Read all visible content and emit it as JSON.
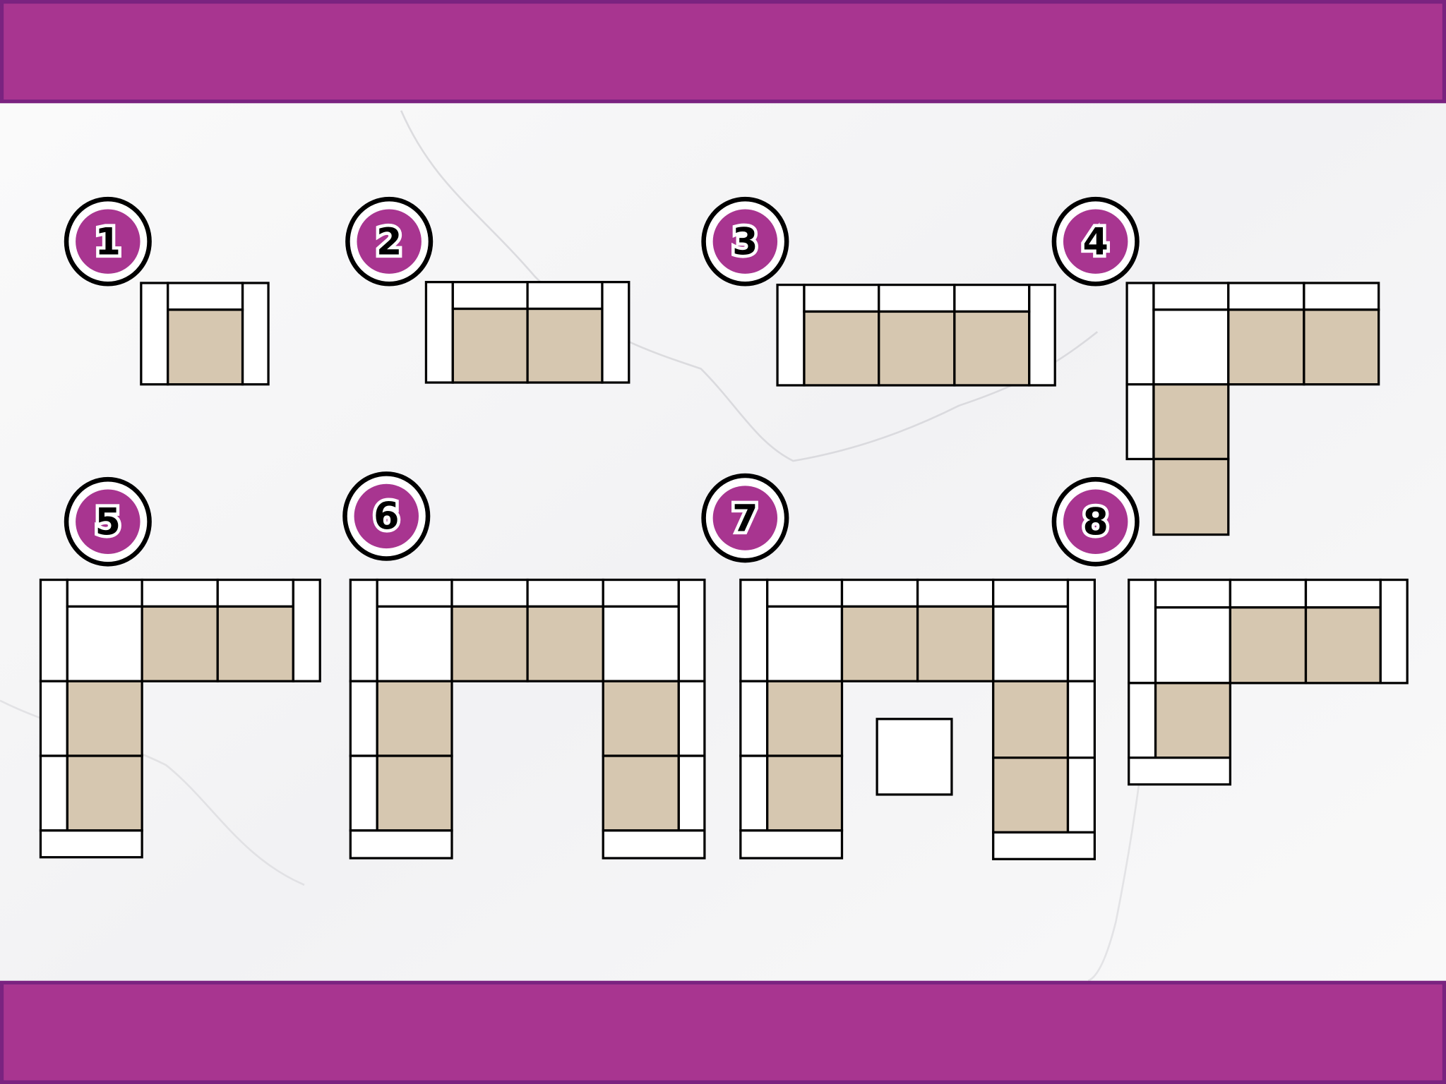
{
  "colors": {
    "banner_fill": "#a83590",
    "banner_border": "#7a2380",
    "seat": "#d6c7b0",
    "frame": "#ffffff",
    "outline": "#000000",
    "badge_fill": "#a83590",
    "background": "#f6f6f7"
  },
  "configurations": [
    {
      "label": "1"
    },
    {
      "label": "2"
    },
    {
      "label": "3"
    },
    {
      "label": "4"
    },
    {
      "label": "5"
    },
    {
      "label": "6"
    },
    {
      "label": "7"
    },
    {
      "label": "8"
    }
  ]
}
